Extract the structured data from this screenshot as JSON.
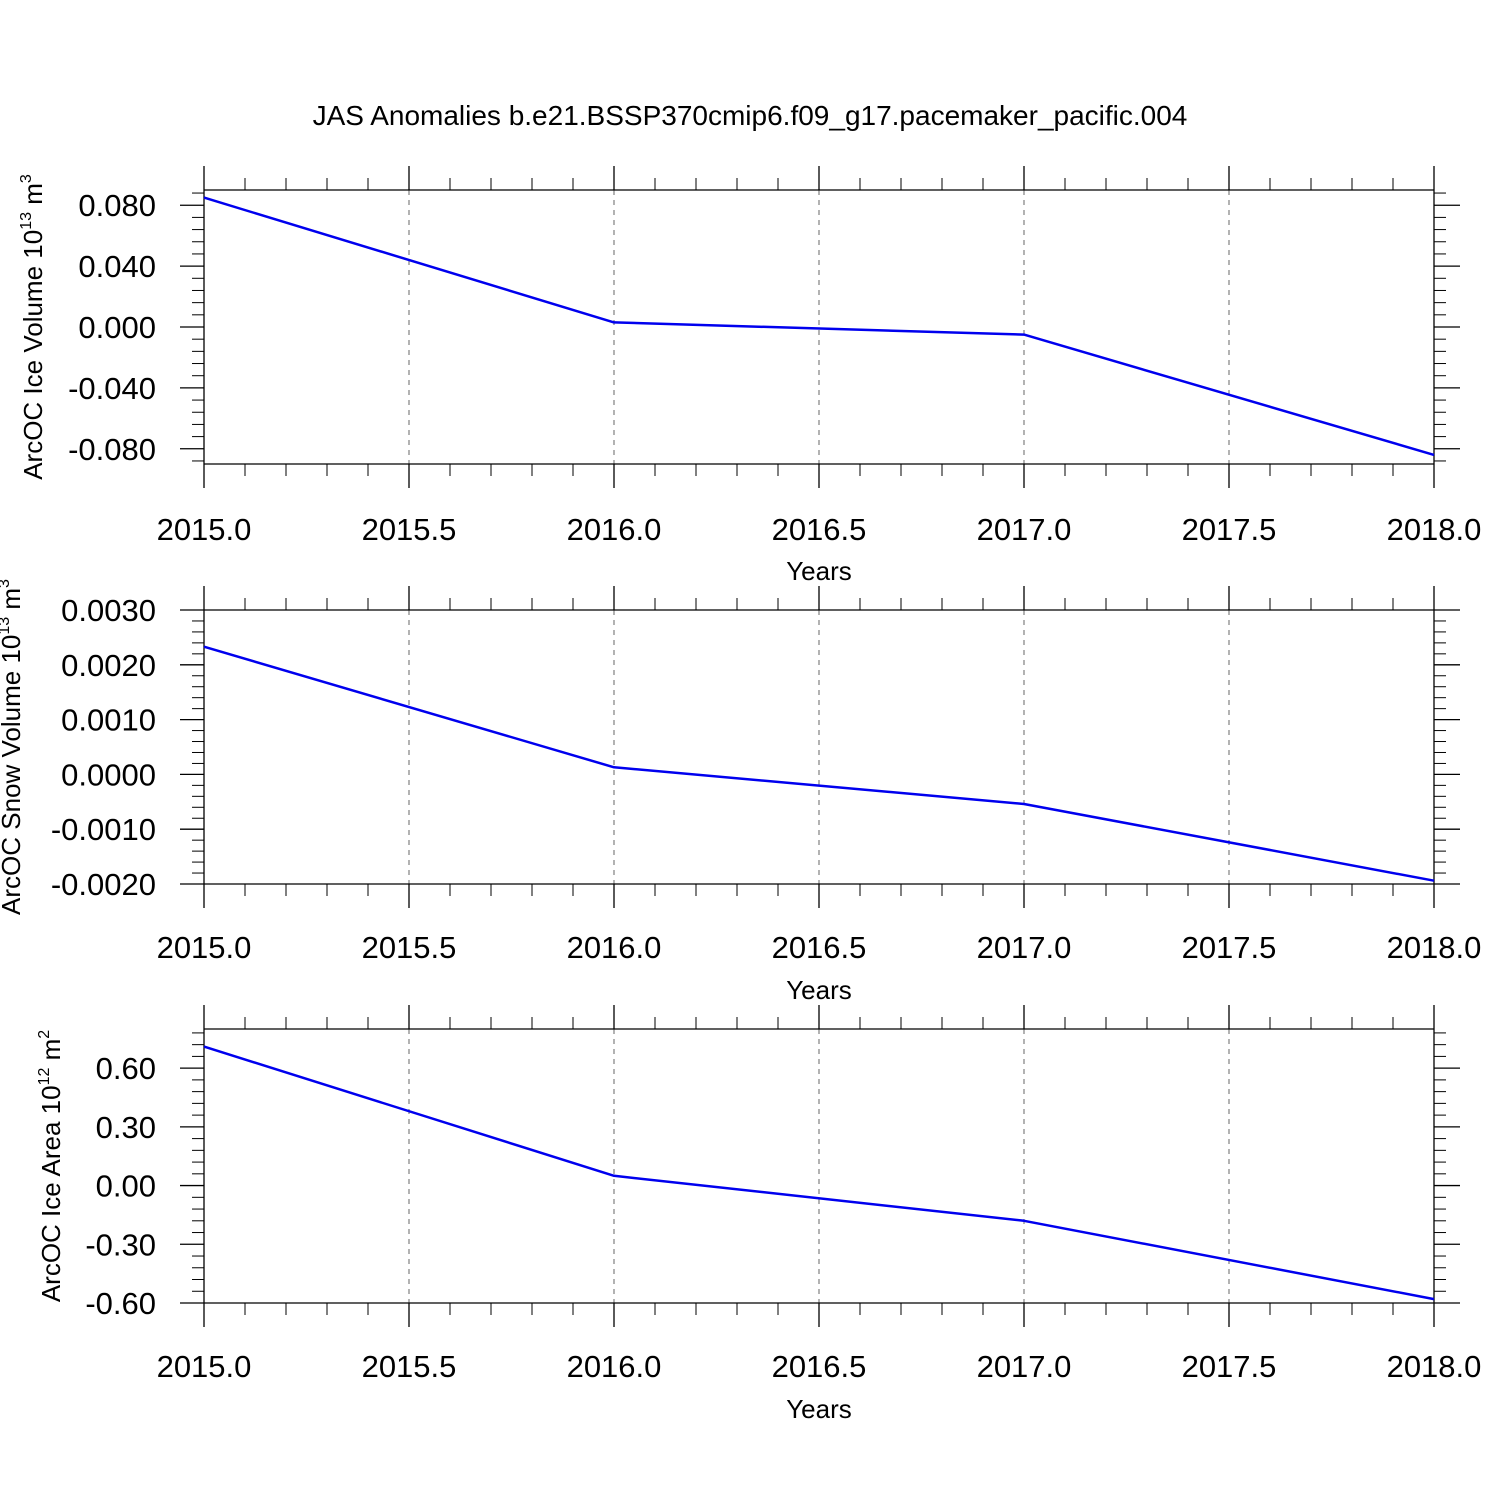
{
  "title": "JAS Anomalies b.e21.BSSP370cmip6.f09_g17.pacemaker_pacific.004",
  "colors": {
    "line": "#0000ee",
    "axis": "#000000",
    "grid": "#808080"
  },
  "chart_data": [
    {
      "type": "line",
      "xlabel": "Years",
      "ylabel": {
        "prefix": "ArcOC Ice Volume 10",
        "exp": "13",
        "mid": " m",
        "unitexp": "3"
      },
      "xlim": [
        2015.0,
        2018.0
      ],
      "ylim": [
        -0.09,
        0.09
      ],
      "xticks": [
        2015.0,
        2015.5,
        2016.0,
        2016.5,
        2017.0,
        2017.5,
        2018.0
      ],
      "xtick_labels": [
        "2015.0",
        "2015.5",
        "2016.0",
        "2016.5",
        "2017.0",
        "2017.5",
        "2018.0"
      ],
      "yticks": [
        0.08,
        0.04,
        0.0,
        -0.04,
        -0.08
      ],
      "ytick_labels": [
        "0.080",
        "0.040",
        "0.000",
        "-0.040",
        "-0.080"
      ],
      "yminor_step": 0.008,
      "grid": "vertical dashed at x ticks",
      "series": [
        {
          "x": [
            2015,
            2016,
            2017,
            2018
          ],
          "values": [
            0.085,
            0.003,
            -0.005,
            -0.084
          ]
        }
      ]
    },
    {
      "type": "line",
      "xlabel": "Years",
      "ylabel": {
        "prefix": "ArcOC Snow Volume 10",
        "exp": "13",
        "mid": " m",
        "unitexp": "3"
      },
      "xlim": [
        2015.0,
        2018.0
      ],
      "ylim": [
        -0.002,
        0.003
      ],
      "xticks": [
        2015.0,
        2015.5,
        2016.0,
        2016.5,
        2017.0,
        2017.5,
        2018.0
      ],
      "xtick_labels": [
        "2015.0",
        "2015.5",
        "2016.0",
        "2016.5",
        "2017.0",
        "2017.5",
        "2018.0"
      ],
      "yticks": [
        0.003,
        0.002,
        0.001,
        0.0,
        -0.001,
        -0.002
      ],
      "ytick_labels": [
        "0.0030",
        "0.0020",
        "0.0010",
        "0.0000",
        "-0.0010",
        "-0.0020"
      ],
      "yminor_step": 0.0002,
      "grid": "vertical dashed at x ticks",
      "series": [
        {
          "x": [
            2015,
            2016,
            2017,
            2018
          ],
          "values": [
            0.00233,
            0.00013,
            -0.00054,
            -0.00194
          ]
        }
      ]
    },
    {
      "type": "line",
      "xlabel": "Years",
      "ylabel": {
        "prefix": "ArcOC Ice Area 10",
        "exp": "12",
        "mid": " m",
        "unitexp": "2"
      },
      "xlim": [
        2015.0,
        2018.0
      ],
      "ylim": [
        -0.6,
        0.8
      ],
      "xticks": [
        2015.0,
        2015.5,
        2016.0,
        2016.5,
        2017.0,
        2017.5,
        2018.0
      ],
      "xtick_labels": [
        "2015.0",
        "2015.5",
        "2016.0",
        "2016.5",
        "2017.0",
        "2017.5",
        "2018.0"
      ],
      "yticks": [
        0.6,
        0.3,
        0.0,
        -0.3,
        -0.6
      ],
      "ytick_labels": [
        "0.60",
        "0.30",
        "0.00",
        "-0.30",
        "-0.60"
      ],
      "yminor_step": 0.06,
      "grid": "vertical dashed at x ticks",
      "series": [
        {
          "x": [
            2015,
            2016,
            2017,
            2018
          ],
          "values": [
            0.71,
            0.05,
            -0.18,
            -0.58
          ]
        }
      ]
    }
  ]
}
